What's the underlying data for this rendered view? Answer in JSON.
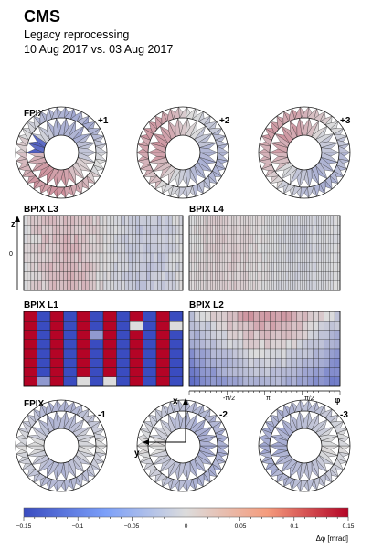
{
  "header": {
    "experiment": "CMS",
    "line1": "Legacy reprocessing",
    "line2": "10 Aug 2017 vs. 03 Aug 2017"
  },
  "chart_data": {
    "type": "heatmap",
    "panels": {
      "fpix_plus": {
        "label": "FPIX",
        "disks": [
          "+1",
          "+2",
          "+3"
        ]
      },
      "bpix_l3": {
        "label": "BPIX L3",
        "ylabel": "z",
        "yticks": [
          "0"
        ]
      },
      "bpix_l4": {
        "label": "BPIX L4"
      },
      "bpix_l1": {
        "label": "BPIX L1"
      },
      "bpix_l2": {
        "label": "BPIX L2",
        "xlabel": "φ",
        "xticks": [
          "-π/2",
          "π",
          "π/2"
        ]
      },
      "fpix_minus": {
        "label": "FPIX",
        "disks": [
          "-1",
          "-2",
          "-3"
        ]
      },
      "axes_glyph": {
        "x": "x",
        "y": "y"
      }
    },
    "colorbar": {
      "label": "Δφ [mrad]",
      "range": [
        -0.15,
        0.15
      ],
      "ticks": [
        "−0.15",
        "−0.1",
        "−0.05",
        "0",
        "0.05",
        "0.1",
        "0.15"
      ],
      "colors": {
        "low": "#3a4cc0",
        "mid": "#dcdcdc",
        "high": "#b40426"
      }
    }
  }
}
